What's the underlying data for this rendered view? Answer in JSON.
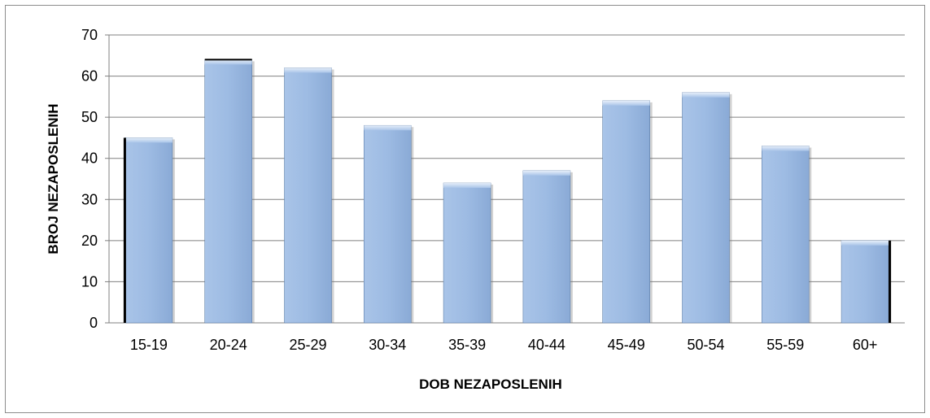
{
  "chart_data": {
    "type": "bar",
    "categories": [
      "15-19",
      "20-24",
      "25-29",
      "30-34",
      "35-39",
      "40-44",
      "45-49",
      "50-54",
      "55-59",
      "60+"
    ],
    "values": [
      45,
      64,
      62,
      48,
      34,
      37,
      54,
      56,
      43,
      20
    ],
    "xlabel": "DOB NEZAPOSLENIH",
    "ylabel": "BROJ NEZAPOSLENIH",
    "ylim": [
      0,
      70
    ],
    "yticks": [
      0,
      10,
      20,
      30,
      40,
      50,
      60,
      70
    ],
    "grid": true,
    "legend": "none",
    "bar_color": "#9dbbe3",
    "bar_edge_color": "#5f7fa8",
    "bar_shadow_color": "#000000",
    "grid_color": "#808080"
  }
}
